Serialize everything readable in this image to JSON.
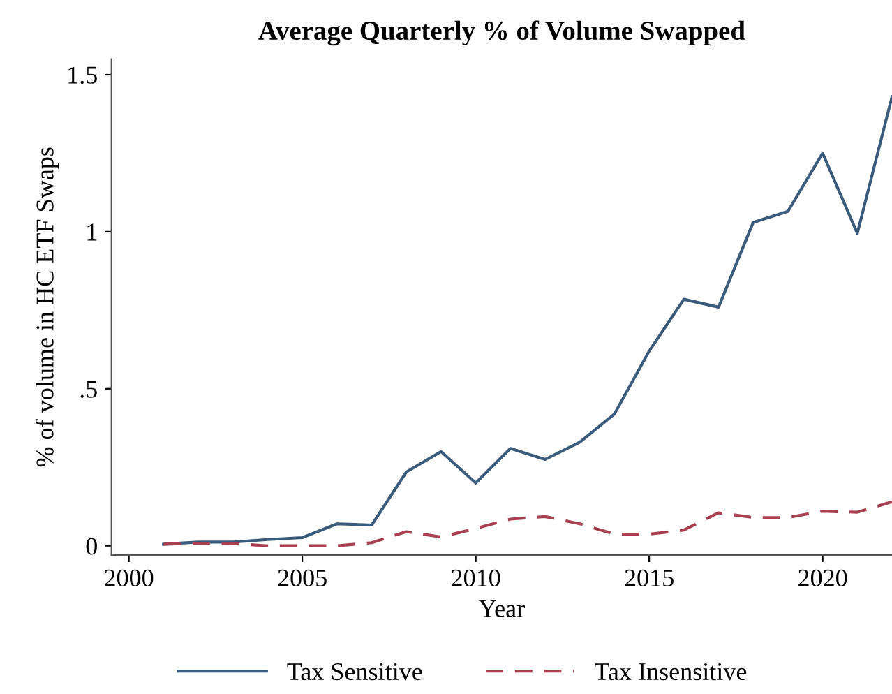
{
  "chart_data": {
    "type": "line",
    "title": "Average Quarterly % of Volume Swapped",
    "xlabel": "Year",
    "ylabel": "% of volume in HC ETF Swaps",
    "x": [
      2001,
      2002,
      2003,
      2004,
      2005,
      2006,
      2007,
      2008,
      2009,
      2010,
      2011,
      2012,
      2013,
      2014,
      2015,
      2016,
      2017,
      2018,
      2019,
      2020,
      2021,
      2022
    ],
    "series": [
      {
        "name": "Tax Sensitive",
        "color": "#3b5b7c",
        "line_style": "solid",
        "values": [
          0.005,
          0.012,
          0.012,
          0.02,
          0.026,
          0.07,
          0.066,
          0.235,
          0.3,
          0.2,
          0.31,
          0.275,
          0.33,
          0.42,
          0.62,
          0.785,
          0.76,
          1.03,
          1.065,
          1.25,
          0.995,
          1.43
        ]
      },
      {
        "name": "Tax Insensitive",
        "color": "#a84050",
        "line_style": "dashed",
        "values": [
          0.005,
          0.008,
          0.007,
          0.0,
          0.0,
          0.0,
          0.01,
          0.045,
          0.028,
          0.055,
          0.085,
          0.093,
          0.07,
          0.037,
          0.037,
          0.05,
          0.105,
          0.09,
          0.09,
          0.11,
          0.107,
          0.14
        ]
      }
    ],
    "xlim": [
      1999.5,
      2022
    ],
    "xticks": [
      2000,
      2005,
      2010,
      2015,
      2020
    ],
    "ylim": [
      -0.03,
      1.55
    ],
    "yticks": [
      0,
      {
        "value": 0.5,
        "label": ".5"
      },
      1,
      1.5
    ],
    "legend": "bottom",
    "grid": false
  }
}
